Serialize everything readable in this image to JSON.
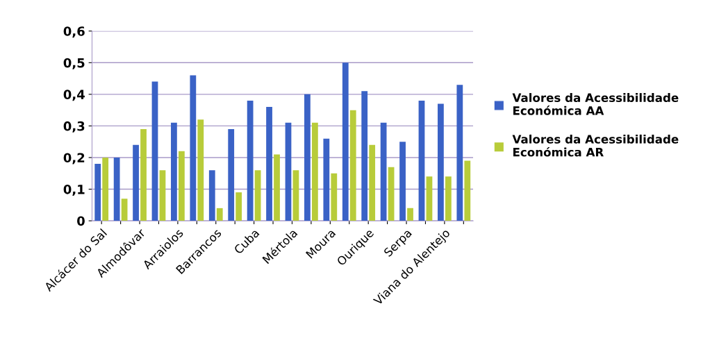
{
  "chart_data": {
    "type": "bar",
    "categories": [
      "Alcácer do Sal",
      null,
      "Almodôvar",
      null,
      "Arraiolos",
      null,
      "Barrancos",
      null,
      "Cuba",
      null,
      "Mértola",
      null,
      "Moura",
      null,
      "Ourique",
      null,
      "Serpa",
      null,
      "Viana do Alentejo",
      null
    ],
    "series": [
      {
        "name": "Valores da Acessibilidade Económica AA",
        "color": "#3a62c6",
        "values": [
          0.18,
          0.2,
          0.24,
          0.44,
          0.31,
          0.46,
          0.16,
          0.29,
          0.38,
          0.36,
          0.31,
          0.4,
          0.26,
          0.5,
          0.41,
          0.31,
          0.25,
          0.38,
          0.37,
          0.43
        ]
      },
      {
        "name": "Valores da Acessibilidade Económica AR",
        "color": "#b8cc3a",
        "values": [
          0.2,
          0.07,
          0.29,
          0.16,
          0.22,
          0.32,
          0.04,
          0.09,
          0.16,
          0.21,
          0.16,
          0.31,
          0.15,
          0.35,
          0.24,
          0.17,
          0.04,
          0.14,
          0.14,
          0.19
        ]
      }
    ],
    "ylim": [
      0,
      0.6
    ],
    "yticks": [
      {
        "value": 0,
        "label": "0"
      },
      {
        "value": 0.1,
        "label": "0,1"
      },
      {
        "value": 0.2,
        "label": "0,2"
      },
      {
        "value": 0.3,
        "label": "0,3"
      },
      {
        "value": 0.4,
        "label": "0,4"
      },
      {
        "value": 0.5,
        "label": "0,5"
      },
      {
        "value": 0.6,
        "label": "0,6"
      }
    ],
    "grid": "y",
    "legend": "right"
  }
}
